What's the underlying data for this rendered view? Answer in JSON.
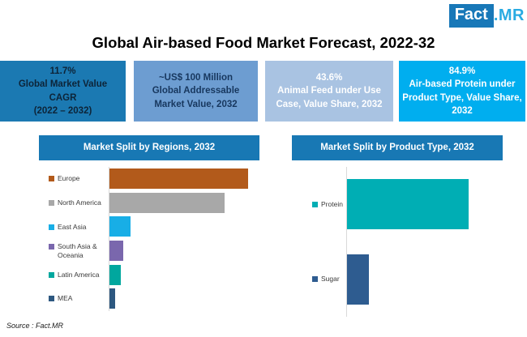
{
  "logo": {
    "fact": "Fact",
    "mr": ".MR",
    "fact_bg": "#1878b8",
    "mr_color": "#29abe2"
  },
  "title": "Global Air-based Food Market Forecast, 2022-32",
  "stat_boxes": [
    {
      "bg": "#1b79b2",
      "text_color": "#0d2438",
      "lines": [
        "11.7%",
        "Global Market Value",
        "CAGR",
        "(2022 – 2032)"
      ]
    },
    {
      "bg": "#6d9dd1",
      "text_color": "#17375e",
      "lines": [
        "~US$ 100 Million",
        "Global Addressable",
        "Market Value, 2032"
      ]
    },
    {
      "bg": "#a9c3e2",
      "text_color": "#ffffff",
      "lines": [
        "43.6%",
        "Animal Feed under Use",
        "Case, Value Share, 2032"
      ]
    },
    {
      "bg": "#00aeef",
      "text_color": "#ffffff",
      "lines": [
        "84.9%",
        "Air-based Protein under",
        "Product Type, Value Share,",
        "2032"
      ]
    }
  ],
  "chart_data": [
    {
      "type": "bar",
      "orientation": "horizontal",
      "title": "Market Split by Regions, 2032",
      "header_bg": "#1878b4",
      "categories": [
        "Europe",
        "North America",
        "East Asia",
        "South Asia & Oceania",
        "Latin America",
        "MEA"
      ],
      "values": [
        100,
        83,
        15,
        10,
        8,
        4
      ],
      "values_note": "no numeric axis shown; values are relative bar lengths as % of longest bar (Europe)",
      "xmax": 108,
      "colors": [
        "#b25a1b",
        "#a8a8a8",
        "#18aee6",
        "#7a67ad",
        "#00a79e",
        "#2d5880"
      ],
      "legend_position": "left",
      "grid": false
    },
    {
      "type": "bar",
      "orientation": "horizontal",
      "title": "Market Split by Product Type, 2032",
      "header_bg": "#1878b4",
      "categories": [
        "Protein",
        "Sugar"
      ],
      "values": [
        84.9,
        15.1
      ],
      "values_note": "value share %; Protein share 84.9% stated in stat box",
      "xmax": 120,
      "colors": [
        "#00aeb4",
        "#2e5c90"
      ],
      "legend_position": "left",
      "grid": false
    }
  ],
  "source": "Source : Fact.MR"
}
